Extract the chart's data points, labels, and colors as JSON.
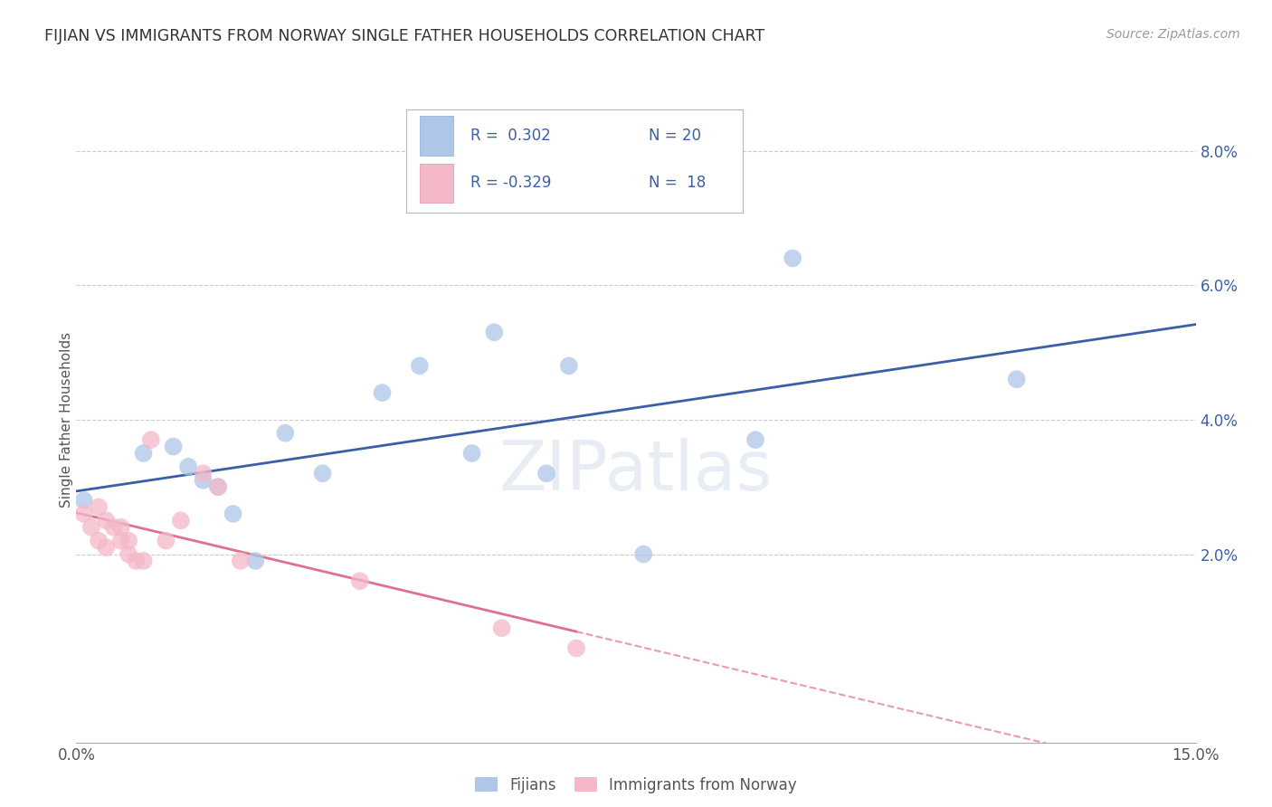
{
  "title": "FIJIAN VS IMMIGRANTS FROM NORWAY SINGLE FATHER HOUSEHOLDS CORRELATION CHART",
  "source": "Source: ZipAtlas.com",
  "ylabel": "Single Father Households",
  "xlim": [
    0.0,
    0.15
  ],
  "ylim": [
    -0.008,
    0.088
  ],
  "fijian_color": "#aec6e8",
  "norway_color": "#f4b8c8",
  "fijian_line_color": "#3a5fa8",
  "norway_line_color": "#e07090",
  "legend_label1": "Fijians",
  "legend_label2": "Immigrants from Norway",
  "watermark": "ZIPatlas",
  "fijian_x": [
    0.001,
    0.009,
    0.013,
    0.015,
    0.017,
    0.019,
    0.021,
    0.024,
    0.028,
    0.033,
    0.041,
    0.046,
    0.053,
    0.056,
    0.063,
    0.066,
    0.076,
    0.091,
    0.096,
    0.126
  ],
  "fijian_y": [
    0.028,
    0.035,
    0.036,
    0.033,
    0.031,
    0.03,
    0.026,
    0.019,
    0.038,
    0.032,
    0.044,
    0.048,
    0.035,
    0.053,
    0.032,
    0.048,
    0.02,
    0.037,
    0.064,
    0.046
  ],
  "norway_x": [
    0.001,
    0.002,
    0.003,
    0.003,
    0.004,
    0.004,
    0.005,
    0.006,
    0.006,
    0.007,
    0.007,
    0.008,
    0.009,
    0.01,
    0.012,
    0.014,
    0.017,
    0.019,
    0.022,
    0.038,
    0.057,
    0.067
  ],
  "norway_y": [
    0.026,
    0.024,
    0.022,
    0.027,
    0.021,
    0.025,
    0.024,
    0.022,
    0.024,
    0.02,
    0.022,
    0.019,
    0.019,
    0.037,
    0.022,
    0.025,
    0.032,
    0.03,
    0.019,
    0.016,
    0.009,
    0.006
  ],
  "background_color": "#ffffff",
  "grid_color": "#cccccc"
}
